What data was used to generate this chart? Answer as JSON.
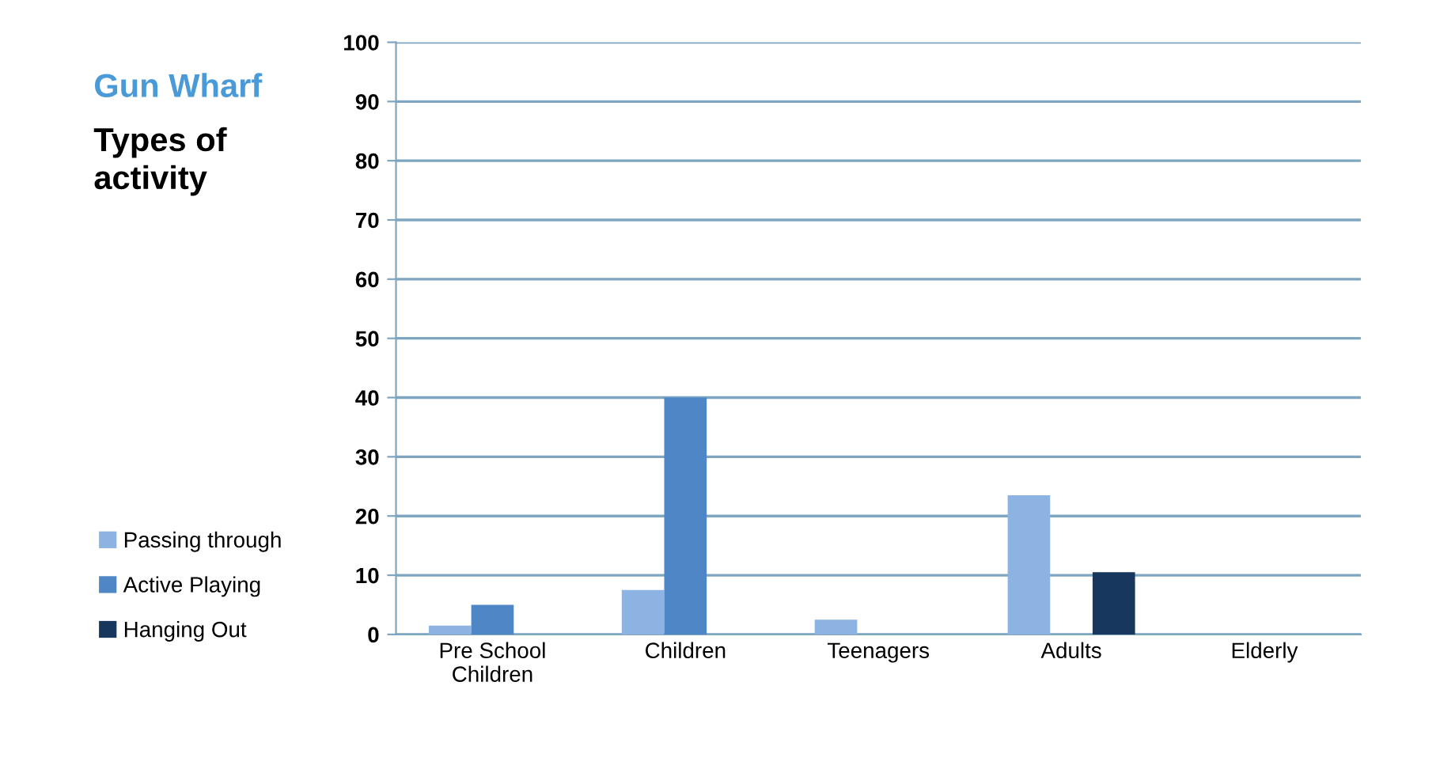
{
  "chart_data": {
    "type": "bar",
    "title": "Gun Wharf",
    "subtitle": "Types of\nactivity",
    "categories": [
      "Pre School\nChildren",
      "Children",
      "Teenagers",
      "Adults",
      "Elderly"
    ],
    "series": [
      {
        "name": "Passing through",
        "color": "#8db3e2",
        "values": [
          1.5,
          7.5,
          2.5,
          23.5,
          0
        ]
      },
      {
        "name": "Active Playing",
        "color": "#4f86c6",
        "values": [
          5,
          40,
          0,
          0,
          0
        ]
      },
      {
        "name": "Hanging Out",
        "color": "#17375e",
        "values": [
          0,
          0,
          0,
          10.5,
          0
        ]
      }
    ],
    "ylim": [
      0,
      100
    ],
    "yticks": [
      0,
      10,
      20,
      30,
      40,
      50,
      60,
      70,
      80,
      90,
      100
    ],
    "grid": "y",
    "legend": "left"
  }
}
